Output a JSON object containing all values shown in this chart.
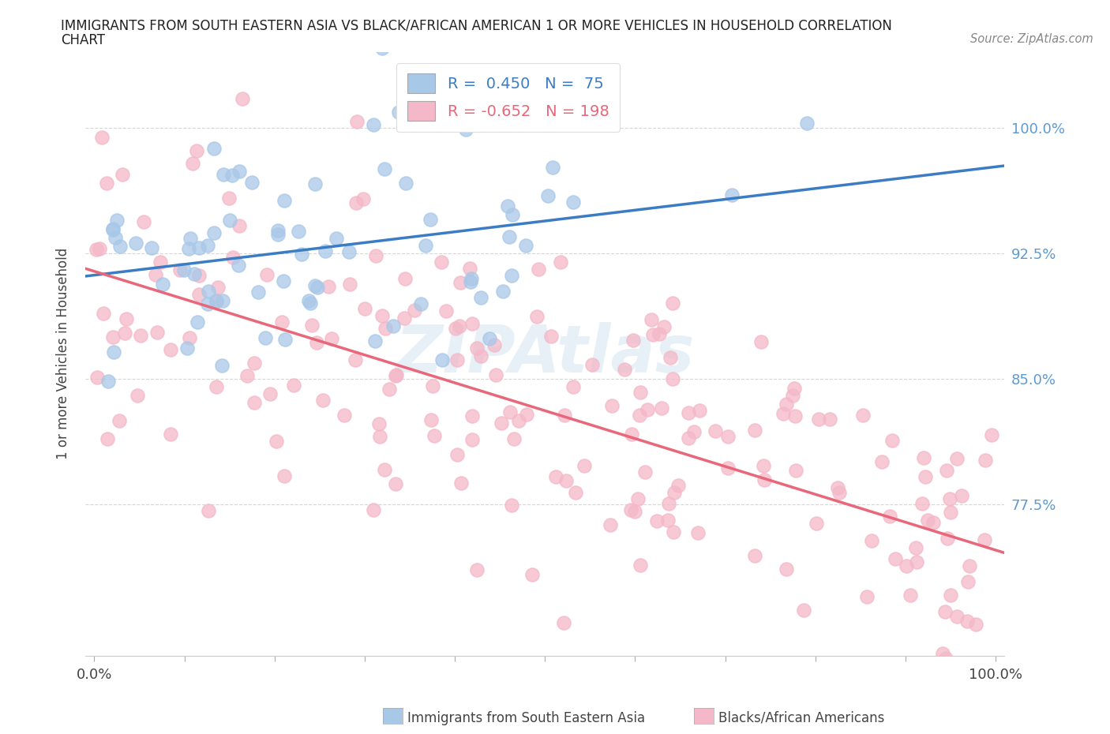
{
  "title_line1": "IMMIGRANTS FROM SOUTH EASTERN ASIA VS BLACK/AFRICAN AMERICAN 1 OR MORE VEHICLES IN HOUSEHOLD CORRELATION",
  "title_line2": "CHART",
  "source_text": "Source: ZipAtlas.com",
  "ylabel": "1 or more Vehicles in Household",
  "background_color": "#ffffff",
  "blue_color": "#A8C8E8",
  "pink_color": "#F4B8C8",
  "blue_line_color": "#3B7CC4",
  "pink_line_color": "#E8677A",
  "blue_tick_color": "#5B9BD5",
  "grid_color": "#cccccc",
  "R_blue": 0.45,
  "N_blue": 75,
  "R_pink": -0.652,
  "N_pink": 198,
  "legend_label_blue": "Immigrants from South Eastern Asia",
  "legend_label_pink": "Blacks/African Americans",
  "watermark": "ZIPAtlas",
  "ytick_vals": [
    0.775,
    0.85,
    0.925,
    1.0
  ],
  "ytick_lbls": [
    "77.5%",
    "85.0%",
    "92.5%",
    "100.0%"
  ],
  "ymin": 0.685,
  "ymax": 1.045,
  "xmin": -0.01,
  "xmax": 1.01
}
